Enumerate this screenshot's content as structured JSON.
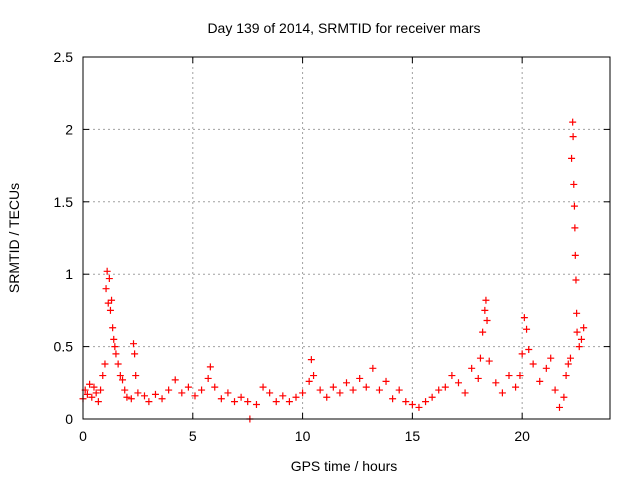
{
  "chart_data": {
    "type": "scatter",
    "title": "Day 139 of 2014, SRMTID for receiver mars",
    "xlabel": "GPS time / hours",
    "ylabel": "SRMTID / TECUs",
    "xlim": [
      0,
      24
    ],
    "ylim": [
      0,
      2.5
    ],
    "xticks": [
      0,
      5,
      10,
      15,
      20
    ],
    "xtick_labels": [
      "0",
      "5",
      "10",
      "15",
      "20"
    ],
    "yticks": [
      0,
      0.5,
      1,
      1.5,
      2,
      2.5
    ],
    "ytick_labels": [
      "0",
      "0.5",
      "1",
      "1.5",
      "2",
      "2.5"
    ],
    "grid": true,
    "legend": "none",
    "marker": "plus",
    "color": "#ff0000",
    "series": [
      {
        "points": [
          [
            0.0,
            0.14
          ],
          [
            0.1,
            0.2
          ],
          [
            0.2,
            0.17
          ],
          [
            0.3,
            0.24
          ],
          [
            0.4,
            0.15
          ],
          [
            0.5,
            0.22
          ],
          [
            0.6,
            0.18
          ],
          [
            0.7,
            0.12
          ],
          [
            0.8,
            0.2
          ],
          [
            0.9,
            0.3
          ],
          [
            1.0,
            0.38
          ],
          [
            1.05,
            0.9
          ],
          [
            1.1,
            1.02
          ],
          [
            1.15,
            0.8
          ],
          [
            1.2,
            0.97
          ],
          [
            1.25,
            0.75
          ],
          [
            1.3,
            0.82
          ],
          [
            1.35,
            0.63
          ],
          [
            1.4,
            0.55
          ],
          [
            1.45,
            0.5
          ],
          [
            1.5,
            0.45
          ],
          [
            1.6,
            0.38
          ],
          [
            1.7,
            0.3
          ],
          [
            1.8,
            0.27
          ],
          [
            1.9,
            0.2
          ],
          [
            2.0,
            0.15
          ],
          [
            2.2,
            0.14
          ],
          [
            2.3,
            0.52
          ],
          [
            2.35,
            0.45
          ],
          [
            2.4,
            0.3
          ],
          [
            2.5,
            0.18
          ],
          [
            2.8,
            0.16
          ],
          [
            3.0,
            0.12
          ],
          [
            3.3,
            0.17
          ],
          [
            3.6,
            0.14
          ],
          [
            3.9,
            0.2
          ],
          [
            4.2,
            0.27
          ],
          [
            4.5,
            0.18
          ],
          [
            4.8,
            0.22
          ],
          [
            5.1,
            0.16
          ],
          [
            5.4,
            0.2
          ],
          [
            5.7,
            0.28
          ],
          [
            5.8,
            0.36
          ],
          [
            6.0,
            0.22
          ],
          [
            6.3,
            0.14
          ],
          [
            6.6,
            0.18
          ],
          [
            6.9,
            0.12
          ],
          [
            7.2,
            0.15
          ],
          [
            7.5,
            0.12
          ],
          [
            7.6,
            0.0
          ],
          [
            7.9,
            0.1
          ],
          [
            8.2,
            0.22
          ],
          [
            8.5,
            0.18
          ],
          [
            8.8,
            0.12
          ],
          [
            9.1,
            0.16
          ],
          [
            9.4,
            0.12
          ],
          [
            9.7,
            0.15
          ],
          [
            10.0,
            0.18
          ],
          [
            10.3,
            0.26
          ],
          [
            10.4,
            0.41
          ],
          [
            10.5,
            0.3
          ],
          [
            10.8,
            0.2
          ],
          [
            11.1,
            0.15
          ],
          [
            11.4,
            0.22
          ],
          [
            11.7,
            0.18
          ],
          [
            12.0,
            0.25
          ],
          [
            12.3,
            0.2
          ],
          [
            12.6,
            0.28
          ],
          [
            12.9,
            0.22
          ],
          [
            13.2,
            0.35
          ],
          [
            13.5,
            0.2
          ],
          [
            13.8,
            0.26
          ],
          [
            14.1,
            0.14
          ],
          [
            14.4,
            0.2
          ],
          [
            14.7,
            0.12
          ],
          [
            15.0,
            0.1
          ],
          [
            15.3,
            0.08
          ],
          [
            15.6,
            0.12
          ],
          [
            15.9,
            0.15
          ],
          [
            16.2,
            0.2
          ],
          [
            16.5,
            0.22
          ],
          [
            16.8,
            0.3
          ],
          [
            17.1,
            0.25
          ],
          [
            17.4,
            0.18
          ],
          [
            17.7,
            0.35
          ],
          [
            18.0,
            0.28
          ],
          [
            18.1,
            0.42
          ],
          [
            18.2,
            0.6
          ],
          [
            18.3,
            0.75
          ],
          [
            18.35,
            0.82
          ],
          [
            18.4,
            0.68
          ],
          [
            18.5,
            0.4
          ],
          [
            18.8,
            0.25
          ],
          [
            19.1,
            0.18
          ],
          [
            19.4,
            0.3
          ],
          [
            19.7,
            0.22
          ],
          [
            19.9,
            0.3
          ],
          [
            20.0,
            0.45
          ],
          [
            20.1,
            0.7
          ],
          [
            20.2,
            0.62
          ],
          [
            20.3,
            0.48
          ],
          [
            20.5,
            0.38
          ],
          [
            20.8,
            0.26
          ],
          [
            21.1,
            0.35
          ],
          [
            21.3,
            0.42
          ],
          [
            21.5,
            0.2
          ],
          [
            21.7,
            0.08
          ],
          [
            21.9,
            0.15
          ],
          [
            22.0,
            0.3
          ],
          [
            22.1,
            0.38
          ],
          [
            22.2,
            0.42
          ],
          [
            22.25,
            1.8
          ],
          [
            22.3,
            2.05
          ],
          [
            22.32,
            1.95
          ],
          [
            22.35,
            1.62
          ],
          [
            22.38,
            1.47
          ],
          [
            22.4,
            1.32
          ],
          [
            22.42,
            1.13
          ],
          [
            22.45,
            0.96
          ],
          [
            22.48,
            0.73
          ],
          [
            22.5,
            0.6
          ],
          [
            22.6,
            0.5
          ],
          [
            22.7,
            0.55
          ],
          [
            22.8,
            0.63
          ]
        ]
      }
    ]
  }
}
